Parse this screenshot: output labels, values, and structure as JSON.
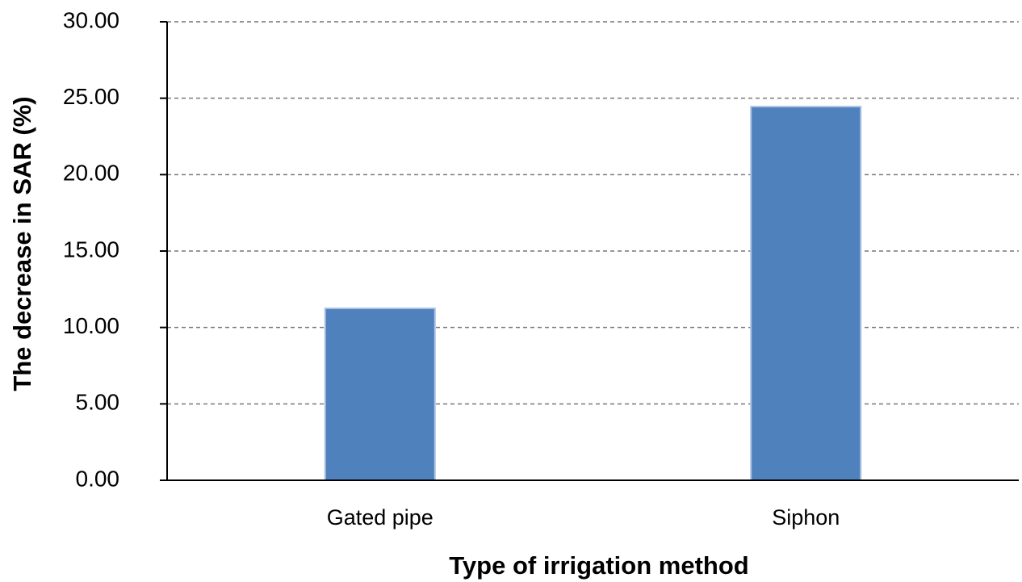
{
  "chart_data": {
    "type": "bar",
    "y_label": "The decrease in SAR (%)",
    "x_label": "Type of irrigation method",
    "categories": [
      "Gated pipe",
      "Siphon"
    ],
    "values": [
      11.25,
      24.45
    ],
    "color": "#4f81bd",
    "ylim": [
      0,
      30
    ],
    "yticks": [
      {
        "value": 0,
        "label": "0.00"
      },
      {
        "value": 5,
        "label": "5.00"
      },
      {
        "value": 10,
        "label": "10.00"
      },
      {
        "value": 15,
        "label": "15.00"
      },
      {
        "value": 20,
        "label": "20.00"
      },
      {
        "value": 25,
        "label": "25.00"
      },
      {
        "value": 30,
        "label": "30.00"
      }
    ],
    "grid": true
  }
}
